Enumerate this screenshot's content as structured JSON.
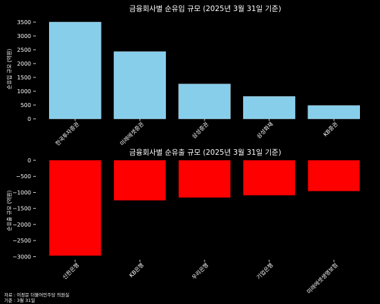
{
  "chart_data": [
    {
      "type": "bar",
      "title": "금융회사별 순유입 규모 (2025년 3월 31일 기준)",
      "xlabel": "",
      "ylabel": "순유입 규모 (억원)",
      "categories": [
        "한국투자증권",
        "미래에셋증권",
        "삼성증권",
        "삼성화재",
        "KB증권"
      ],
      "values": [
        3500,
        2430,
        1260,
        810,
        480
      ],
      "ylim": [
        0,
        3600
      ],
      "yticks": [
        0,
        500,
        1000,
        1500,
        2000,
        2500,
        3000,
        3500
      ],
      "color": "#87CEEB",
      "grid": false
    },
    {
      "type": "bar",
      "title": "금융회사별 순유출 규모 (2025년 3월 31일 기준)",
      "xlabel": "",
      "ylabel": "순유출 규모 (억원)",
      "categories": [
        "신한은행",
        "KB은행",
        "우리은행",
        "기업은행",
        "미래에셋생명보험"
      ],
      "values": [
        -2970,
        -1250,
        -1160,
        -1090,
        -960
      ],
      "ylim": [
        -3100,
        0
      ],
      "yticks": [
        0,
        -500,
        -1000,
        -1500,
        -2000,
        -2500,
        -3000
      ],
      "color": "#FF0000",
      "grid": false
    }
  ],
  "footer": {
    "source": "자료 : 이정문 더불어민주당 의원실",
    "basis": "기준 : 3월 31일"
  }
}
